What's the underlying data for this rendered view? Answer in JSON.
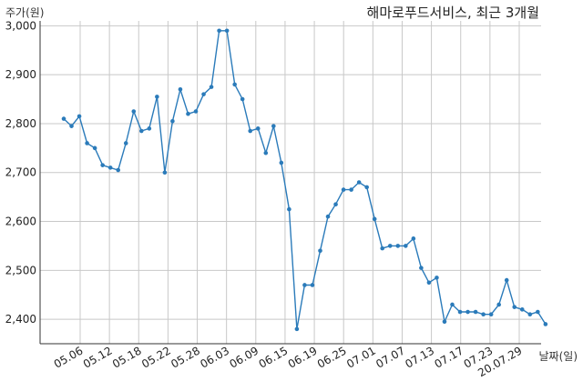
{
  "chart_data": {
    "type": "line",
    "title": "해마로푸드서비스, 최근 3개월",
    "ylabel": "주가(원)",
    "xlabel": "날짜(일)",
    "ylim": [
      2350,
      3010
    ],
    "yticks": [
      2400,
      2500,
      2600,
      2700,
      2800,
      2900,
      3000
    ],
    "ytick_labels": [
      "2,400",
      "2,500",
      "2,600",
      "2,700",
      "2,800",
      "2,900",
      "3,000"
    ],
    "xtick_labels": [
      "05.06",
      "05.12",
      "05.18",
      "05.22",
      "05.28",
      "06.03",
      "06.09",
      "06.15",
      "06.19",
      "06.25",
      "07.01",
      "07.07",
      "07.13",
      "07.17",
      "07.23",
      "20.07.29"
    ],
    "grid": true,
    "line_color": "#2b7bba",
    "values": [
      2810,
      2795,
      2815,
      2760,
      2750,
      2715,
      2710,
      2705,
      2760,
      2825,
      2785,
      2790,
      2855,
      2700,
      2805,
      2870,
      2820,
      2825,
      2860,
      2875,
      2990,
      2990,
      2880,
      2850,
      2785,
      2790,
      2740,
      2795,
      2720,
      2625,
      2380,
      2470,
      2470,
      2540,
      2610,
      2635,
      2665,
      2665,
      2680,
      2670,
      2605,
      2545,
      2550,
      2550,
      2550,
      2565,
      2505,
      2475,
      2485,
      2395,
      2430,
      2415,
      2415,
      2415,
      2410,
      2410,
      2430,
      2480,
      2425,
      2420,
      2410,
      2415,
      2390
    ]
  }
}
